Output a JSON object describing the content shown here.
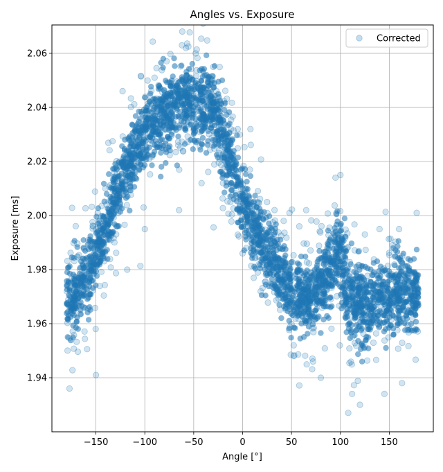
{
  "chart_data": {
    "type": "scatter",
    "title": "Angles vs. Exposure",
    "xlabel": "Angle [°]",
    "ylabel": "Exposure [ms]",
    "xlim": [
      -195,
      195
    ],
    "ylim": [
      1.92,
      2.0705
    ],
    "xticks": [
      -150,
      -100,
      -50,
      0,
      50,
      100,
      150
    ],
    "xtick_labels": [
      "−150",
      "−100",
      "−50",
      "0",
      "50",
      "100",
      "150"
    ],
    "yticks": [
      1.94,
      1.96,
      1.98,
      2.0,
      2.02,
      2.04,
      2.06
    ],
    "ytick_labels": [
      "1.94",
      "1.96",
      "1.98",
      "2.00",
      "2.02",
      "2.04",
      "2.06"
    ],
    "grid": true,
    "legend": {
      "position": "top-right",
      "entries": [
        "Corrected"
      ]
    },
    "series": [
      {
        "name": "Corrected",
        "color": "#1f77b4",
        "marker_alpha": 0.2,
        "trend": {
          "x": [
            -180,
            -170,
            -160,
            -150,
            -140,
            -130,
            -120,
            -110,
            -100,
            -90,
            -80,
            -70,
            -60,
            -50,
            -40,
            -30,
            -20,
            -10,
            0,
            10,
            20,
            30,
            40,
            50,
            60,
            70,
            80,
            90,
            95,
            100,
            105,
            110,
            120,
            130,
            140,
            150,
            160,
            170,
            180
          ],
          "y": [
            1.968,
            1.971,
            1.977,
            1.985,
            1.995,
            2.006,
            2.016,
            2.024,
            2.031,
            2.036,
            2.039,
            2.041,
            2.043,
            2.043,
            2.042,
            2.038,
            2.03,
            2.018,
            2.005,
            1.996,
            1.99,
            1.985,
            1.978,
            1.971,
            1.969,
            1.97,
            1.973,
            1.98,
            1.986,
            1.985,
            1.977,
            1.968,
            1.967,
            1.968,
            1.97,
            1.97,
            1.971,
            1.972,
            1.973
          ],
          "spread": [
            0.012,
            0.012,
            0.012,
            0.012,
            0.012,
            0.012,
            0.012,
            0.012,
            0.012,
            0.013,
            0.013,
            0.013,
            0.013,
            0.013,
            0.013,
            0.013,
            0.013,
            0.012,
            0.012,
            0.011,
            0.011,
            0.011,
            0.011,
            0.011,
            0.011,
            0.011,
            0.011,
            0.012,
            0.013,
            0.013,
            0.013,
            0.014,
            0.014,
            0.014,
            0.014,
            0.013,
            0.013,
            0.012,
            0.012
          ]
        },
        "outliers": [
          [
            -177,
            1.936
          ],
          [
            -150,
            1.941
          ],
          [
            -118,
            1.98
          ],
          [
            -100,
            1.995
          ],
          [
            -90,
            2.051
          ],
          [
            -65,
            2.002
          ],
          [
            -62,
            2.063
          ],
          [
            -58,
            2.062
          ],
          [
            -48,
            2.06
          ],
          [
            -42,
            2.012
          ],
          [
            -30,
            2.055
          ],
          [
            -20,
            2.012
          ],
          [
            -5,
            2.032
          ],
          [
            0,
            1.986
          ],
          [
            8,
            2.032
          ],
          [
            25,
            2.005
          ],
          [
            35,
            1.975
          ],
          [
            42,
            1.998
          ],
          [
            48,
            2.001
          ],
          [
            58,
            1.996
          ],
          [
            65,
            2.002
          ],
          [
            72,
            1.946
          ],
          [
            80,
            1.94
          ],
          [
            95,
            2.014
          ],
          [
            100,
            2.015
          ],
          [
            108,
            1.927
          ],
          [
            112,
            1.934
          ],
          [
            120,
            1.93
          ],
          [
            125,
            1.993
          ],
          [
            140,
            1.995
          ],
          [
            145,
            1.934
          ],
          [
            160,
            1.995
          ],
          [
            163,
            1.938
          ],
          [
            178,
            2.001
          ]
        ]
      }
    ]
  }
}
